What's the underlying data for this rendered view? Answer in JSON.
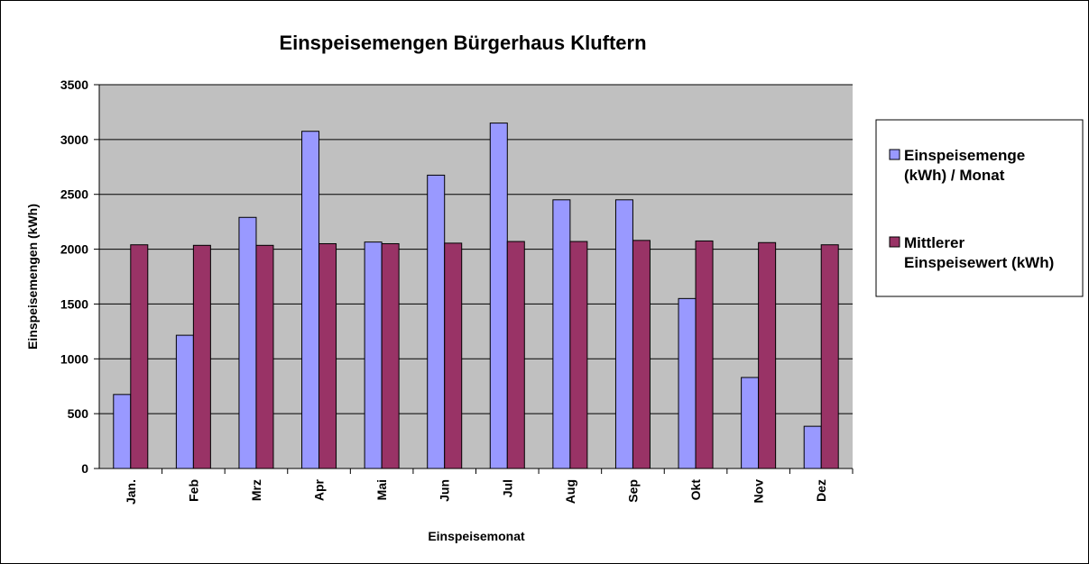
{
  "chart_data": {
    "type": "bar",
    "title": "Einspeisemengen Bürgerhaus Kluftern",
    "xlabel": "Einspeisemonat",
    "ylabel": "Einspeisemengen (kWh)",
    "ylim": [
      0,
      3500
    ],
    "yticks": [
      "0",
      "500",
      "1000",
      "1500",
      "2000",
      "2500",
      "3000",
      "3500"
    ],
    "grid": true,
    "legend_position": "right",
    "categories": [
      "Jan.",
      "Feb",
      "Mrz",
      "Apr",
      "Mai",
      "Jun",
      "Jul",
      "Aug",
      "Sep",
      "Okt",
      "Nov",
      "Dez"
    ],
    "series": [
      {
        "name": "Einspeisemenge (kWh) / Monat",
        "legend_lines": [
          "Einspeisemenge",
          "(kWh) / Monat"
        ],
        "color": "#9999ff",
        "values": [
          675,
          1215,
          2290,
          3075,
          2065,
          2675,
          3150,
          2450,
          2450,
          1550,
          830,
          385
        ]
      },
      {
        "name": "Mittlerer Einspeisewert (kWh)",
        "legend_lines": [
          "Mittlerer",
          "Einspeisewert (kWh)"
        ],
        "color": "#993366",
        "values": [
          2040,
          2035,
          2035,
          2050,
          2050,
          2055,
          2070,
          2070,
          2080,
          2075,
          2060,
          2040
        ]
      }
    ],
    "plot_background": "#c0c0c0"
  }
}
